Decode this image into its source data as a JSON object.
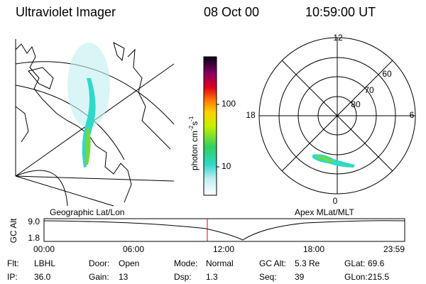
{
  "header": {
    "title": "Ultraviolet Imager",
    "date": "08 Oct 00",
    "time": "10:59:00 UT"
  },
  "colorbar": {
    "label": "photon cm",
    "exp1": "-2",
    "unit2": "s",
    "exp2": "-1",
    "ticks": [
      "100",
      "10"
    ]
  },
  "panels": {
    "left_label": "Geographic Lat/Lon",
    "right_label": "Apex MLat/MLT"
  },
  "polar": {
    "hours": [
      "12",
      "18",
      "6",
      "0"
    ],
    "latitudes": [
      "60",
      "70",
      "80"
    ]
  },
  "altitude": {
    "axis_label": "GC Alt",
    "yticks": [
      "9.0",
      "1.8"
    ],
    "xticks": [
      "00:00",
      "06:00",
      "12:00",
      "18:00",
      "23:59"
    ]
  },
  "footer": {
    "rows": [
      [
        [
          "Flt:",
          "LBHL"
        ],
        [
          "Door:",
          "Open"
        ],
        [
          "Mode:",
          "Normal"
        ],
        [
          "GC Alt:",
          "5.3 Re"
        ],
        [
          "GLat:",
          "69.6"
        ]
      ],
      [
        [
          "IP:",
          "36.0"
        ],
        [
          "Gain:",
          "13"
        ],
        [
          "Dsp:",
          "1.3"
        ],
        [
          "Seq:",
          "39"
        ],
        [
          "GLon:",
          "215.5"
        ]
      ]
    ]
  }
}
